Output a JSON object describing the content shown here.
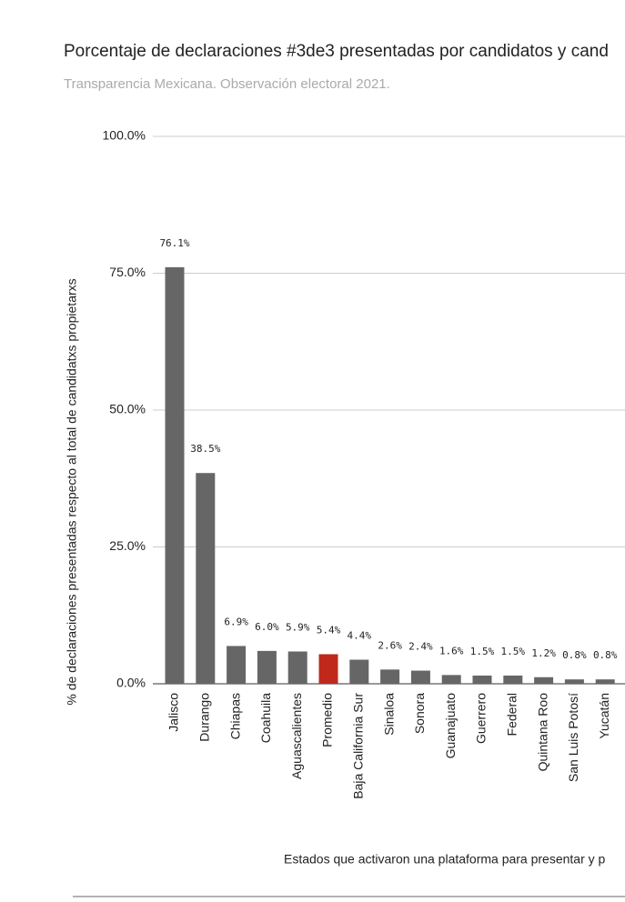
{
  "chart_data": {
    "type": "bar",
    "title": "Porcentaje de declaraciones #3de3 presentadas por candidatos y cand",
    "subtitle": "Transparencia Mexicana. Observación electoral 2021.",
    "y_label": "% de declaraciones presentadas respecto al total de candidatxs propietarxs",
    "x_label": "Estados que activaron una plataforma para presentar y p",
    "categories": [
      "Jalisco",
      "Durango",
      "Chiapas",
      "Coahuila",
      "Aguascalientes",
      "Promedio",
      "Baja California Sur",
      "Sinaloa",
      "Sonora",
      "Guanajuato",
      "Guerrero",
      "Federal",
      "Quintana Roo",
      "San Luis Potosí",
      "Yucatán"
    ],
    "values": [
      76.1,
      38.5,
      6.9,
      6.0,
      5.9,
      5.4,
      4.4,
      2.6,
      2.4,
      1.6,
      1.5,
      1.5,
      1.2,
      0.8,
      0.8
    ],
    "value_labels": [
      "76.1%",
      "38.5%",
      "6.9%",
      "6.0%",
      "5.9%",
      "5.4%",
      "4.4%",
      "2.6%",
      "2.4%",
      "1.6%",
      "1.5%",
      "1.5%",
      "1.2%",
      "0.8%",
      "0.8%"
    ],
    "colors": [
      "#666666",
      "#666666",
      "#666666",
      "#666666",
      "#666666",
      "#c0281c",
      "#666666",
      "#666666",
      "#666666",
      "#666666",
      "#666666",
      "#666666",
      "#666666",
      "#666666",
      "#666666"
    ],
    "ylim": [
      0,
      100
    ],
    "yticks": [
      {
        "value": 0,
        "label": "0.0%"
      },
      {
        "value": 25,
        "label": "25.0%"
      },
      {
        "value": 50,
        "label": "50.0%"
      },
      {
        "value": 75,
        "label": "75.0%"
      },
      {
        "value": 100,
        "label": "100.0%"
      }
    ],
    "grid": true
  }
}
